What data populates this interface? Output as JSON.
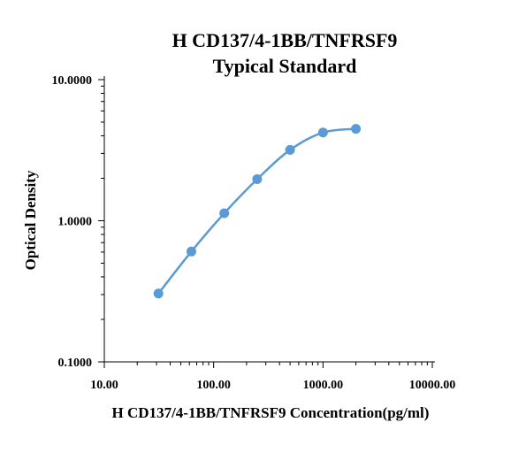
{
  "chart_data": {
    "type": "scatter",
    "title_lines": [
      "H CD137/4-1BB/TNFRSF9",
      "Typical Standard"
    ],
    "xlabel": "H CD137/4-1BB/TNFRSF9 Concentration(pg/ml)",
    "ylabel": "Optical Density",
    "x_scale": "log",
    "y_scale": "log",
    "xlim": [
      10,
      10000
    ],
    "ylim": [
      0.1,
      10
    ],
    "x_ticks": [
      10,
      100,
      1000,
      10000
    ],
    "x_tick_labels": [
      "10.00",
      "100.00",
      "1000.00",
      "10000.00"
    ],
    "y_ticks": [
      0.1,
      1,
      10
    ],
    "y_tick_labels": [
      "0.1000",
      "1.0000",
      "10.0000"
    ],
    "grid": false,
    "legend": "none",
    "point_color": "#5b9bd5",
    "line_color": "#5b9bd5",
    "fit_curve": true,
    "series": [
      {
        "x": [
          31.25,
          62.5,
          125,
          250,
          500,
          1000,
          2000
        ],
        "y": [
          0.305,
          0.605,
          1.13,
          1.97,
          3.18,
          4.22,
          4.48
        ]
      }
    ]
  }
}
